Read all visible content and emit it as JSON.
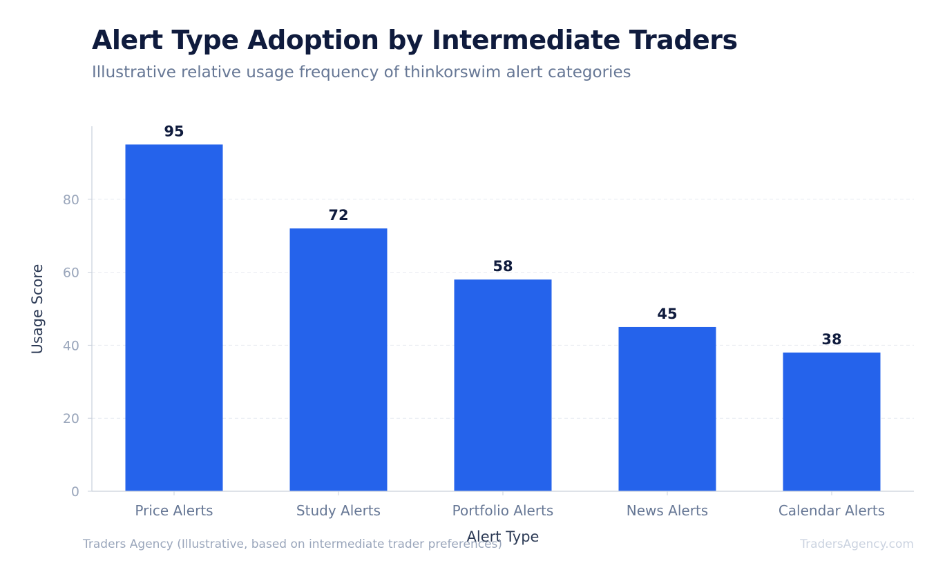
{
  "title": "Alert Type Adoption by Intermediate Traders",
  "subtitle": "Illustrative relative usage frequency of thinkorswim alert categories",
  "footer": {
    "source": "Traders Agency (Illustrative, based on intermediate trader preferences)",
    "brand": "TradersAgency.com"
  },
  "colors": {
    "bar": "#2563eb",
    "title": "#0f1b3d",
    "subtitle": "#667795",
    "axis_tick": "#9aa6bb",
    "category_label": "#667795",
    "axis_title": "#2c3a55",
    "value_label": "#0f1b3d",
    "grid": "#e6eaf0",
    "axis_line": "#c9d0db"
  },
  "chart_data": {
    "type": "bar",
    "categories": [
      "Price Alerts",
      "Study Alerts",
      "Portfolio Alerts",
      "News Alerts",
      "Calendar Alerts"
    ],
    "values": [
      95,
      72,
      58,
      45,
      38
    ],
    "xlabel": "Alert Type",
    "ylabel": "Usage Score",
    "ylim": [
      0,
      100
    ],
    "yticks": [
      0,
      20,
      40,
      60,
      80
    ],
    "grid": true,
    "grid_style": "dashed",
    "data_labels": true
  }
}
